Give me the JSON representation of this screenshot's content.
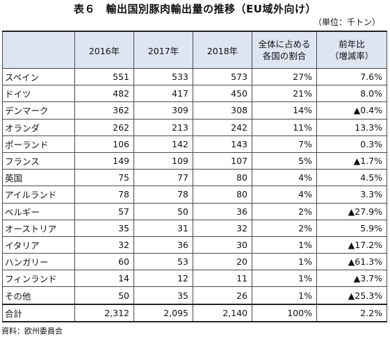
{
  "title": "表６　輸出国別豚肉輸出量の推移（EU域外向け）",
  "unit": "（単位：千トン）",
  "headers": {
    "blank": "",
    "y2016": "2016年",
    "y2017": "2017年",
    "y2018": "2018年",
    "share_l1": "全体に占める",
    "share_l2": "各国の割合",
    "yoy_l1": "前年比",
    "yoy_l2": "（増減率）"
  },
  "rows": [
    {
      "country": "スペイン",
      "y2016": "551",
      "y2017": "533",
      "y2018": "573",
      "share": "27%",
      "yoy": "7.6%"
    },
    {
      "country": "ドイツ",
      "y2016": "482",
      "y2017": "417",
      "y2018": "450",
      "share": "21%",
      "yoy": "8.0%"
    },
    {
      "country": "デンマーク",
      "y2016": "362",
      "y2017": "309",
      "y2018": "308",
      "share": "14%",
      "yoy": "▲0.4%"
    },
    {
      "country": "オランダ",
      "y2016": "262",
      "y2017": "213",
      "y2018": "242",
      "share": "11%",
      "yoy": "13.3%"
    },
    {
      "country": "ポーランド",
      "y2016": "106",
      "y2017": "142",
      "y2018": "143",
      "share": "7%",
      "yoy": "0.3%"
    },
    {
      "country": "フランス",
      "y2016": "149",
      "y2017": "109",
      "y2018": "107",
      "share": "5%",
      "yoy": "▲1.7%"
    },
    {
      "country": "英国",
      "y2016": "75",
      "y2017": "77",
      "y2018": "80",
      "share": "4%",
      "yoy": "4.5%"
    },
    {
      "country": "アイルランド",
      "y2016": "78",
      "y2017": "78",
      "y2018": "80",
      "share": "4%",
      "yoy": "3.3%"
    },
    {
      "country": "ベルギー",
      "y2016": "57",
      "y2017": "50",
      "y2018": "36",
      "share": "2%",
      "yoy": "▲27.9%"
    },
    {
      "country": "オーストリア",
      "y2016": "35",
      "y2017": "31",
      "y2018": "32",
      "share": "2%",
      "yoy": "5.9%"
    },
    {
      "country": "イタリア",
      "y2016": "32",
      "y2017": "36",
      "y2018": "30",
      "share": "1%",
      "yoy": "▲17.2%"
    },
    {
      "country": "ハンガリー",
      "y2016": "60",
      "y2017": "53",
      "y2018": "20",
      "share": "1%",
      "yoy": "▲61.3%"
    },
    {
      "country": "フィンランド",
      "y2016": "14",
      "y2017": "12",
      "y2018": "11",
      "share": "1%",
      "yoy": "▲3.7%"
    },
    {
      "country": "その他",
      "y2016": "50",
      "y2017": "35",
      "y2018": "26",
      "share": "1%",
      "yoy": "▲25.3%"
    }
  ],
  "total": {
    "country": "合計",
    "y2016": "2,312",
    "y2017": "2,095",
    "y2018": "2,140",
    "share": "100%",
    "yoy": "2.2%"
  },
  "source": "資料：欧州委員会",
  "colors": {
    "header_bg": "#dde4f2",
    "border": "#4a4a4a"
  }
}
